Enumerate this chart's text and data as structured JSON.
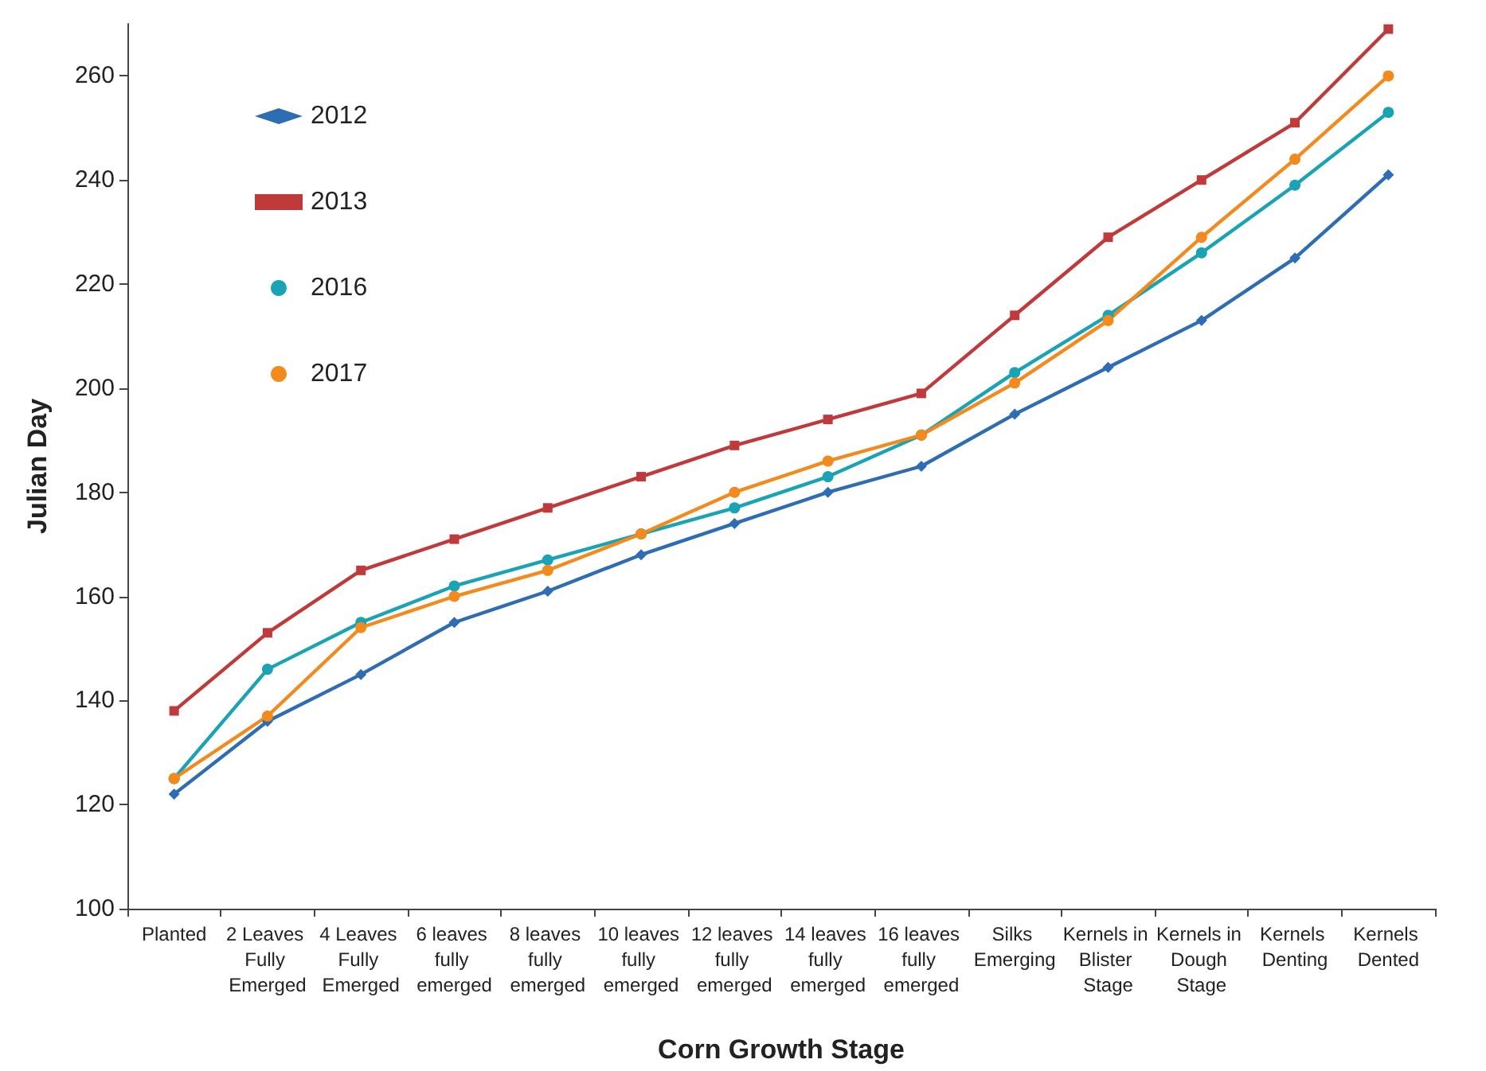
{
  "chart_data": {
    "type": "line",
    "xlabel": "Corn Growth Stage",
    "ylabel": "Julian Day",
    "categories": [
      "Planted",
      "2 Leaves Fully Emerged",
      "4 Leaves Fully Emerged",
      "6 leaves fully emerged",
      "8 leaves fully emerged",
      "10 leaves fully emerged",
      "12 leaves fully emerged",
      "14 leaves fully emerged",
      "16 leaves fully emerged",
      "Silks Emerging",
      "Kernels in Blister Stage",
      "Kernels in Dough Stage",
      "Kernels Denting",
      "Kernels Dented"
    ],
    "series": [
      {
        "name": "2012",
        "color": "#2e6db4",
        "marker": "diamond",
        "values": [
          122,
          136,
          145,
          155,
          161,
          168,
          174,
          180,
          185,
          195,
          204,
          213,
          225,
          241
        ]
      },
      {
        "name": "2013",
        "color": "#c0393b",
        "marker": "square",
        "values": [
          138,
          153,
          165,
          171,
          177,
          183,
          189,
          194,
          199,
          214,
          229,
          240,
          251,
          269
        ]
      },
      {
        "name": "2016",
        "color": "#1aa3b5",
        "marker": "circle",
        "values": [
          125,
          146,
          155,
          162,
          167,
          172,
          177,
          183,
          191,
          203,
          214,
          226,
          239,
          253
        ]
      },
      {
        "name": "2017",
        "color": "#f28a1e",
        "marker": "circle",
        "values": [
          125,
          137,
          154,
          160,
          165,
          172,
          180,
          186,
          191,
          201,
          213,
          229,
          244,
          260
        ]
      }
    ],
    "ylim": [
      100,
      270
    ],
    "yticks": [
      100,
      120,
      140,
      160,
      180,
      200,
      220,
      240,
      260
    ],
    "grid": false,
    "legend": "top left"
  }
}
